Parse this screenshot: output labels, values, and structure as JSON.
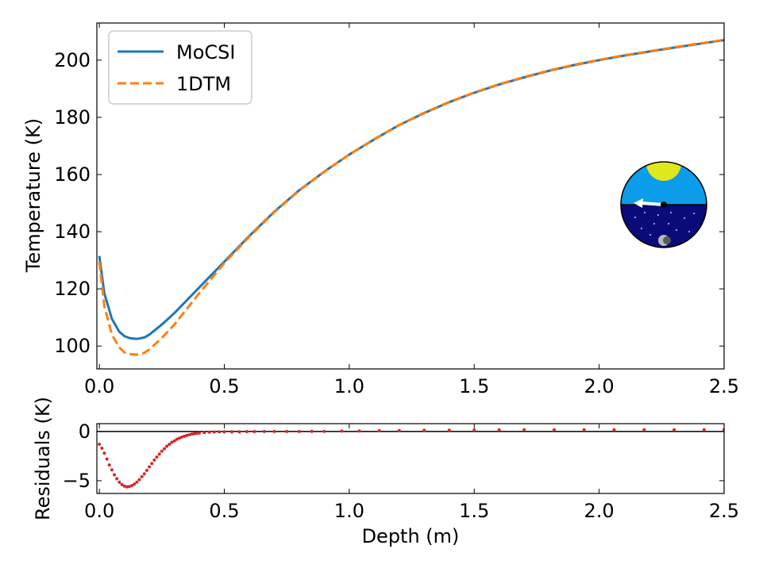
{
  "chart_data": [
    {
      "type": "line",
      "panel": "main",
      "ylabel": "Temperature (K)",
      "xlabel": "",
      "xlim": [
        -0.01,
        2.5
      ],
      "ylim": [
        92,
        213
      ],
      "xticks": [
        0.0,
        0.5,
        1.0,
        1.5,
        2.0,
        2.5
      ],
      "xtick_labels": [
        "0.0",
        "0.5",
        "1.0",
        "1.5",
        "2.0",
        "2.5"
      ],
      "yticks": [
        100,
        120,
        140,
        160,
        180,
        200
      ],
      "ytick_labels": [
        "100",
        "120",
        "140",
        "160",
        "180",
        "200"
      ],
      "legend_position": "top-left",
      "series": [
        {
          "name": "MoCSI",
          "color": "#1f77b4",
          "style": "solid",
          "x": [
            0.0,
            0.02,
            0.05,
            0.08,
            0.1,
            0.12,
            0.15,
            0.18,
            0.2,
            0.25,
            0.3,
            0.35,
            0.4,
            0.5,
            0.6,
            0.7,
            0.8,
            0.9,
            1.0,
            1.1,
            1.2,
            1.3,
            1.4,
            1.5,
            1.6,
            1.7,
            1.8,
            1.9,
            2.0,
            2.1,
            2.2,
            2.3,
            2.4,
            2.5
          ],
          "y": [
            131.5,
            118.5,
            109.5,
            105.0,
            103.5,
            102.8,
            102.5,
            103.0,
            104.0,
            107.5,
            111.5,
            116.0,
            120.5,
            129.5,
            138.5,
            147.0,
            154.5,
            161.0,
            167.0,
            172.3,
            177.3,
            181.5,
            185.3,
            188.6,
            191.5,
            194.0,
            196.3,
            198.3,
            200.0,
            201.6,
            203.0,
            204.4,
            205.7,
            207.0
          ]
        },
        {
          "name": "1DTM",
          "color": "#ff7f0e",
          "style": "dashed",
          "x": [
            0.0,
            0.02,
            0.05,
            0.08,
            0.1,
            0.12,
            0.15,
            0.18,
            0.2,
            0.25,
            0.3,
            0.35,
            0.4,
            0.5,
            0.6,
            0.7,
            0.8,
            0.9,
            1.0,
            1.1,
            1.2,
            1.3,
            1.4,
            1.5,
            1.6,
            1.7,
            1.8,
            1.9,
            2.0,
            2.1,
            2.2,
            2.3,
            2.4,
            2.5
          ],
          "y": [
            129.5,
            114.0,
            104.0,
            99.5,
            97.8,
            97.2,
            97.0,
            97.6,
            98.8,
            102.8,
            107.5,
            113.0,
            118.5,
            129.0,
            138.2,
            146.8,
            154.4,
            161.0,
            167.0,
            172.4,
            177.3,
            181.6,
            185.4,
            188.7,
            191.6,
            194.1,
            196.4,
            198.4,
            200.1,
            201.7,
            203.1,
            204.5,
            205.8,
            207.1
          ]
        }
      ],
      "inset_icon": [
        "sun-icon",
        "horizon-icon",
        "arrow-left-icon",
        "stars-icon",
        "moon-icon"
      ]
    },
    {
      "type": "scatter",
      "panel": "residuals",
      "ylabel": "Residuals (K)",
      "xlabel": "Depth (m)",
      "xlim": [
        -0.01,
        2.5
      ],
      "ylim": [
        -6.3,
        0.8
      ],
      "xticks": [
        0.0,
        0.5,
        1.0,
        1.5,
        2.0,
        2.5
      ],
      "xtick_labels": [
        "0.0",
        "0.5",
        "1.0",
        "1.5",
        "2.0",
        "2.5"
      ],
      "yticks": [
        0,
        -5
      ],
      "ytick_labels": [
        "0",
        "−5"
      ],
      "zero_line": true,
      "series": [
        {
          "name": "",
          "color": "#d62728",
          "x": [
            0.0,
            0.01,
            0.02,
            0.03,
            0.04,
            0.05,
            0.06,
            0.07,
            0.08,
            0.09,
            0.1,
            0.11,
            0.12,
            0.13,
            0.14,
            0.15,
            0.16,
            0.17,
            0.18,
            0.19,
            0.2,
            0.21,
            0.22,
            0.23,
            0.24,
            0.25,
            0.26,
            0.27,
            0.28,
            0.29,
            0.3,
            0.31,
            0.32,
            0.33,
            0.34,
            0.35,
            0.36,
            0.37,
            0.38,
            0.39,
            0.4,
            0.42,
            0.44,
            0.46,
            0.48,
            0.5,
            0.53,
            0.56,
            0.59,
            0.62,
            0.66,
            0.7,
            0.75,
            0.8,
            0.85,
            0.9,
            0.97,
            1.04,
            1.12,
            1.2,
            1.3,
            1.4,
            1.5,
            1.6,
            1.7,
            1.82,
            1.94,
            2.06,
            2.18,
            2.3,
            2.42,
            2.5
          ],
          "y": [
            -1.3,
            -1.7,
            -2.2,
            -2.8,
            -3.4,
            -3.9,
            -4.4,
            -4.8,
            -5.15,
            -5.4,
            -5.55,
            -5.62,
            -5.6,
            -5.5,
            -5.35,
            -5.15,
            -4.9,
            -4.6,
            -4.3,
            -3.95,
            -3.6,
            -3.25,
            -2.9,
            -2.6,
            -2.3,
            -2.0,
            -1.75,
            -1.5,
            -1.3,
            -1.1,
            -0.95,
            -0.8,
            -0.68,
            -0.57,
            -0.48,
            -0.4,
            -0.33,
            -0.27,
            -0.22,
            -0.18,
            -0.15,
            -0.1,
            -0.07,
            -0.05,
            -0.04,
            -0.03,
            -0.02,
            -0.02,
            -0.01,
            -0.01,
            0.0,
            0.0,
            0.0,
            0.0,
            0.01,
            0.02,
            0.04,
            0.06,
            0.08,
            0.1,
            0.12,
            0.14,
            0.15,
            0.16,
            0.17,
            0.17,
            0.18,
            0.18,
            0.18,
            0.18,
            0.18,
            0.18
          ]
        }
      ]
    }
  ]
}
